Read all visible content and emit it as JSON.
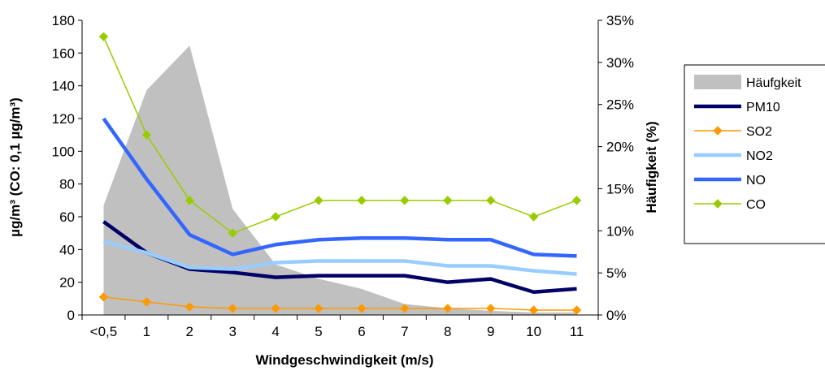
{
  "chart_data": {
    "type": "line",
    "categories": [
      "<0,5",
      "1",
      "2",
      "3",
      "4",
      "5",
      "6",
      "7",
      "8",
      "9",
      "10",
      "11"
    ],
    "xlabel": "Windgeschwindigkeit (m/s)",
    "ylabel": "µg/m³ (CO: 0,1 µg/m³)",
    "y2label": "Häufigkeit (%)",
    "ylim": [
      0,
      180
    ],
    "yticks": [
      "0",
      "20",
      "40",
      "60",
      "80",
      "100",
      "120",
      "140",
      "160",
      "180"
    ],
    "y2lim": [
      0,
      35
    ],
    "y2ticks": [
      "0%",
      "5%",
      "10%",
      "15%",
      "20%",
      "25%",
      "30%",
      "35%"
    ],
    "legend_position": "right",
    "series": [
      {
        "name": "Häufgkeit",
        "kind": "area",
        "axis": "right",
        "color": "#c0c0c0",
        "values": [
          13,
          26.7,
          32,
          12.6,
          6,
          4.3,
          3.1,
          1.3,
          0.8,
          0.5,
          0.3,
          0.3
        ]
      },
      {
        "name": "PM10",
        "kind": "line",
        "axis": "left",
        "color": "#000066",
        "values": [
          57,
          38,
          28,
          26,
          23,
          24,
          24,
          24,
          20,
          22,
          14,
          16
        ]
      },
      {
        "name": "SO2",
        "kind": "line-marker",
        "axis": "left",
        "color": "#ff9900",
        "values": [
          11,
          8,
          5,
          4,
          4,
          4,
          4,
          4,
          4,
          4,
          3,
          3
        ]
      },
      {
        "name": "NO2",
        "kind": "line",
        "axis": "left",
        "color": "#99ccff",
        "values": [
          45,
          38,
          29,
          28,
          32,
          33,
          33,
          33,
          30,
          30,
          27,
          25
        ]
      },
      {
        "name": "NO",
        "kind": "line",
        "axis": "left",
        "color": "#3366ff",
        "values": [
          120,
          83,
          49,
          37,
          43,
          46,
          47,
          47,
          46,
          46,
          37,
          36
        ]
      },
      {
        "name": "CO",
        "kind": "line-marker",
        "axis": "left",
        "color": "#99cc00",
        "values": [
          170,
          110,
          70,
          50,
          60,
          70,
          70,
          70,
          70,
          70,
          60,
          70
        ]
      }
    ]
  }
}
